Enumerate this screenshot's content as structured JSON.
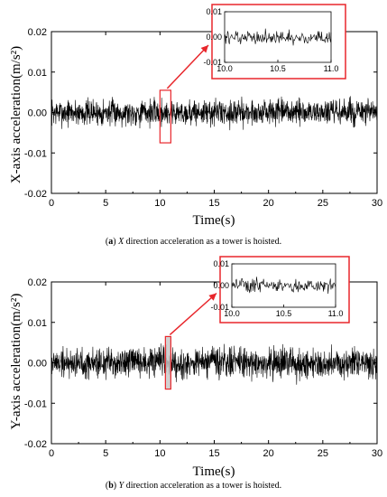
{
  "chart_data": [
    {
      "type": "line",
      "panel": "a",
      "xlabel": "Time(s)",
      "ylabel": "X-axis acceleration(m/s²)",
      "xlim": [
        0,
        30
      ],
      "ylim": [
        -0.02,
        0.02
      ],
      "x_ticks": [
        "0",
        "5",
        "10",
        "15",
        "20",
        "25",
        "30"
      ],
      "y_ticks": [
        "0.02",
        "0.01",
        "0.00",
        "-0.01",
        "-0.02"
      ],
      "signal": {
        "mean": 0.0,
        "amplitude_typical": 0.003,
        "amplitude_peak": 0.005,
        "duration_s": 30
      },
      "highlight": {
        "x_range": [
          10.0,
          11.0
        ],
        "y_range": [
          -0.0075,
          0.0055
        ]
      },
      "inset": {
        "xlim": [
          10.0,
          11.0
        ],
        "ylim": [
          -0.01,
          0.01
        ],
        "x_ticks": [
          "10.0",
          "10.5",
          "11.0"
        ],
        "y_ticks": [
          "0.01",
          "0.00",
          "-0.01"
        ],
        "amplitude_typical": 0.0025
      },
      "caption": {
        "label": "a",
        "var": "X",
        "text": " direction acceleration as a tower is hoisted."
      }
    },
    {
      "type": "line",
      "panel": "b",
      "xlabel": "Time(s)",
      "ylabel": "Y-axis acceleration(m/s²)",
      "xlim": [
        0,
        30
      ],
      "ylim": [
        -0.02,
        0.02
      ],
      "x_ticks": [
        "0",
        "5",
        "10",
        "15",
        "20",
        "25",
        "30"
      ],
      "y_ticks": [
        "0.02",
        "0.01",
        "0.00",
        "-0.01",
        "-0.02"
      ],
      "signal": {
        "mean": 0.0,
        "amplitude_typical": 0.0035,
        "amplitude_peak": 0.006,
        "duration_s": 30
      },
      "highlight": {
        "x_range": [
          10.5,
          11.0
        ],
        "y_range": [
          -0.0065,
          0.0065
        ]
      },
      "inset": {
        "xlim": [
          10.0,
          11.0
        ],
        "ylim": [
          -0.01,
          0.01
        ],
        "x_ticks": [
          "10.0",
          "10.5",
          "11.0"
        ],
        "y_ticks": [
          "0.01",
          "0.00",
          "-0.01"
        ],
        "amplitude_typical": 0.003
      },
      "caption": {
        "label": "b",
        "var": "Y",
        "text": " direction acceleration as a tower is hoisted."
      }
    }
  ],
  "colors": {
    "trace": "#000000",
    "highlight": "#e8262b",
    "highlight_fill": "#c9c9c9"
  }
}
